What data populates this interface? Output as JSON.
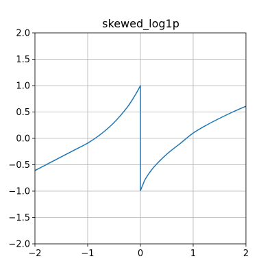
{
  "chart_data": {
    "type": "line",
    "title": "skewed_log1p",
    "xlabel": "",
    "ylabel": "",
    "xlim": [
      -2,
      2
    ],
    "ylim": [
      -2,
      2
    ],
    "xticks": [
      -2,
      -1,
      0,
      1,
      2
    ],
    "yticks": [
      -2.0,
      -1.5,
      -1.0,
      -0.5,
      0.0,
      0.5,
      1.0,
      1.5,
      2.0
    ],
    "xtick_labels": [
      "−2",
      "−1",
      "0",
      "1",
      "2"
    ],
    "ytick_labels": [
      "−2.0",
      "−1.5",
      "−1.0",
      "−0.5",
      "0.0",
      "0.5",
      "1.0",
      "1.5",
      "2.0"
    ],
    "grid": true,
    "series": [
      {
        "color": "#1f77b4",
        "x": [
          -2.0,
          -1.75,
          -1.5,
          -1.25,
          -1.0,
          -0.75,
          -0.5,
          -0.25,
          -0.1,
          0.0,
          0.0,
          0.05,
          0.1,
          0.25,
          0.5,
          0.75,
          1.0,
          1.25,
          1.5,
          1.75,
          2.0
        ],
        "y": [
          -0.61,
          -0.48,
          -0.35,
          -0.22,
          -0.09,
          0.08,
          0.3,
          0.59,
          0.82,
          1.0,
          -0.99,
          -0.87,
          -0.76,
          -0.55,
          -0.3,
          -0.1,
          0.1,
          0.25,
          0.38,
          0.5,
          0.61
        ]
      }
    ]
  }
}
